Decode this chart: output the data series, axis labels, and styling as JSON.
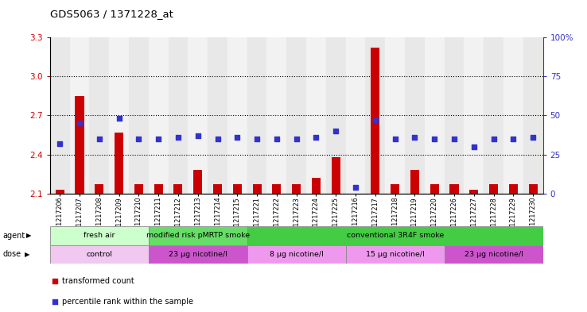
{
  "title": "GDS5063 / 1371228_at",
  "samples": [
    "GSM1217206",
    "GSM1217207",
    "GSM1217208",
    "GSM1217209",
    "GSM1217210",
    "GSM1217211",
    "GSM1217212",
    "GSM1217213",
    "GSM1217214",
    "GSM1217215",
    "GSM1217221",
    "GSM1217222",
    "GSM1217223",
    "GSM1217224",
    "GSM1217225",
    "GSM1217216",
    "GSM1217217",
    "GSM1217218",
    "GSM1217219",
    "GSM1217220",
    "GSM1217226",
    "GSM1217227",
    "GSM1217228",
    "GSM1217229",
    "GSM1217230"
  ],
  "transformed_count": [
    2.13,
    2.85,
    2.17,
    2.57,
    2.17,
    2.17,
    2.17,
    2.28,
    2.17,
    2.17,
    2.17,
    2.17,
    2.17,
    2.22,
    2.38,
    2.1,
    3.22,
    2.17,
    2.28,
    2.17,
    2.17,
    2.13,
    2.17,
    2.17,
    2.17
  ],
  "percentile_rank": [
    32,
    45,
    35,
    48,
    35,
    35,
    36,
    37,
    35,
    36,
    35,
    35,
    35,
    36,
    40,
    4,
    47,
    35,
    36,
    35,
    35,
    30,
    35,
    35,
    36
  ],
  "ylim_left": [
    2.1,
    3.3
  ],
  "ylim_right": [
    0,
    100
  ],
  "yticks_left": [
    2.1,
    2.4,
    2.7,
    3.0,
    3.3
  ],
  "yticks_right": [
    0,
    25,
    50,
    75,
    100
  ],
  "ytick_labels_right": [
    "0",
    "25",
    "50",
    "75",
    "100%"
  ],
  "bar_color": "#cc0000",
  "dot_color": "#3333cc",
  "bar_bottom": 2.1,
  "agent_groups": [
    {
      "label": "fresh air",
      "start": 0,
      "end": 5,
      "color": "#ccffcc"
    },
    {
      "label": "modified risk pMRTP smoke",
      "start": 5,
      "end": 10,
      "color": "#66dd66"
    },
    {
      "label": "conventional 3R4F smoke",
      "start": 10,
      "end": 25,
      "color": "#44cc44"
    }
  ],
  "dose_groups": [
    {
      "label": "control",
      "start": 0,
      "end": 5,
      "color": "#f0c8f0"
    },
    {
      "label": "23 µg nicotine/l",
      "start": 5,
      "end": 10,
      "color": "#cc55cc"
    },
    {
      "label": "8 µg nicotine/l",
      "start": 10,
      "end": 15,
      "color": "#ee99ee"
    },
    {
      "label": "15 µg nicotine/l",
      "start": 15,
      "end": 20,
      "color": "#ee99ee"
    },
    {
      "label": "23 µg nicotine/l",
      "start": 20,
      "end": 25,
      "color": "#cc55cc"
    }
  ],
  "legend_items": [
    {
      "label": "transformed count",
      "color": "#cc0000"
    },
    {
      "label": "percentile rank within the sample",
      "color": "#3333cc"
    }
  ],
  "col_colors": [
    "#e8e8e8",
    "#f2f2f2"
  ],
  "grid_yticks": [
    2.4,
    2.7,
    3.0
  ]
}
